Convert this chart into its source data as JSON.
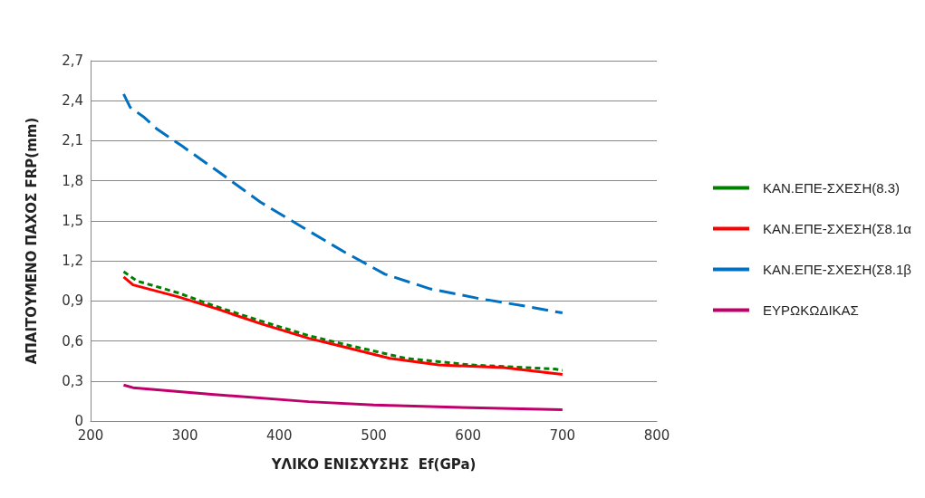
{
  "chart_data": {
    "type": "line",
    "xlabel": "ΥΛΙΚΟ ΕΝΙΣΧΥΣΗΣ  Ef(GPa)",
    "ylabel": "ΑΠΑΙΤΟΥΜΕΝΟ ΠΑΧΟΣ FRP(mm)",
    "xlim": [
      200,
      800
    ],
    "xticks": [
      200,
      300,
      400,
      500,
      600,
      700,
      800
    ],
    "ylim": [
      0,
      2.7
    ],
    "yticks": [
      0,
      {
        "value": 0.3,
        "label": "0,3"
      },
      {
        "value": 0.6,
        "label": "0,6"
      },
      {
        "value": 0.9,
        "label": "0,9"
      },
      {
        "value": 1.2,
        "label": "1,2"
      },
      {
        "value": 1.5,
        "label": "1,5"
      },
      {
        "value": 1.8,
        "label": "1,8"
      },
      {
        "value": 2.1,
        "label": "2,1"
      },
      {
        "value": 2.4,
        "label": "2,4"
      },
      {
        "value": 2.7,
        "label": "2,7"
      }
    ],
    "grid": "y",
    "legend": "right",
    "marker": "none",
    "series": [
      {
        "name": "ΚΑΝ.ΕΠΕ-ΣΧΕΣΗ(8.3)",
        "color": "#008000",
        "line_style": "dashed",
        "x": [
          235,
          249,
          293,
          328,
          380,
          431,
          472,
          534,
          603,
          692,
          700
        ],
        "values": [
          1.12,
          1.05,
          0.96,
          0.87,
          0.75,
          0.64,
          0.57,
          0.47,
          0.42,
          0.39,
          0.38
        ]
      },
      {
        "name": "ΚΑΝ.ΕΠΕ-ΣΧΕΣΗ(Σ8.1α",
        "color": "#ff0000",
        "line_style": "solid",
        "x": [
          235,
          245,
          293,
          334,
          380,
          431,
          466,
          517,
          569,
          638,
          700
        ],
        "values": [
          1.08,
          1.02,
          0.93,
          0.84,
          0.73,
          0.62,
          0.56,
          0.47,
          0.42,
          0.4,
          0.35
        ]
      },
      {
        "name": "ΚΑΝ.ΕΠΕ-ΣΧΕΣΗ(Σ8.1β",
        "color": "#0070c0",
        "line_style": "dashed",
        "x": [
          235,
          242,
          256,
          270,
          297,
          339,
          380,
          425,
          468,
          512,
          560,
          610,
          661,
          700
        ],
        "values": [
          2.45,
          2.35,
          2.28,
          2.19,
          2.06,
          1.85,
          1.64,
          1.45,
          1.27,
          1.1,
          0.99,
          0.92,
          0.86,
          0.81
        ]
      },
      {
        "name": "ΕΥΡΩΚΩΔΙΚΑΣ",
        "color": "#c0006a",
        "line_style": "solid",
        "x": [
          235,
          245,
          328,
          431,
          500,
          603,
          700
        ],
        "values": [
          0.27,
          0.25,
          0.2,
          0.145,
          0.12,
          0.1,
          0.085
        ]
      }
    ]
  }
}
